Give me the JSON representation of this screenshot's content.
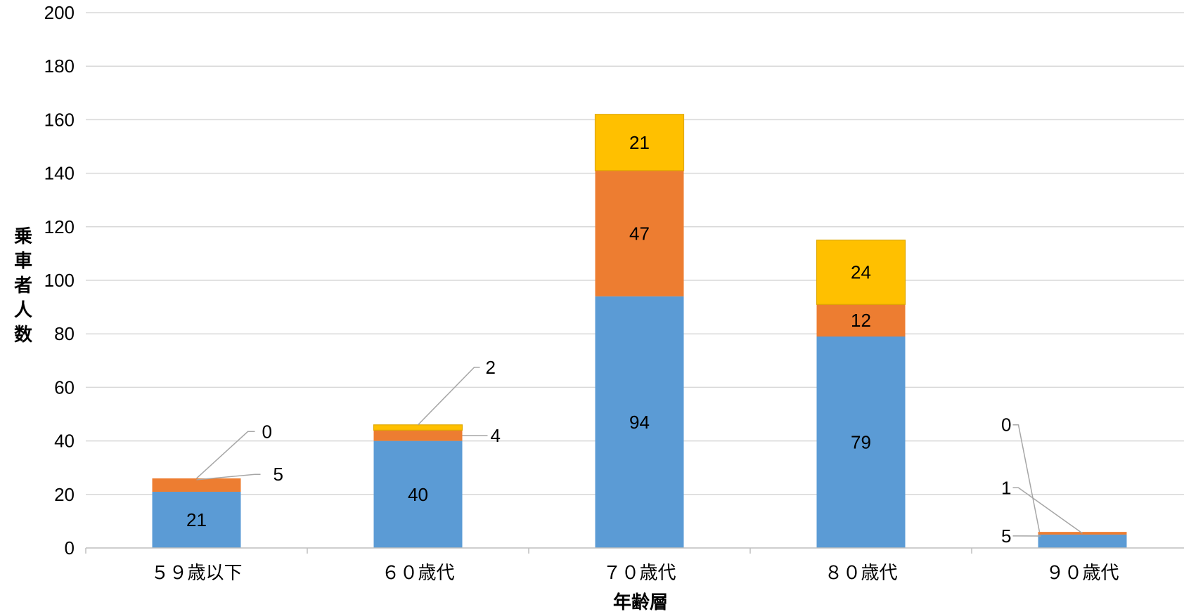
{
  "chart_data": {
    "type": "bar",
    "stacked": true,
    "categories": [
      "５９歳以下",
      "６０歳代",
      "７０歳代",
      "８０歳代",
      "９０歳代"
    ],
    "series": [
      {
        "color": "#5b9bd5",
        "values": [
          21,
          40,
          94,
          79,
          5
        ]
      },
      {
        "color": "#ed7d31",
        "values": [
          5,
          4,
          47,
          12,
          1
        ]
      },
      {
        "color": "#ffc000",
        "values": [
          0,
          2,
          21,
          24,
          0
        ]
      }
    ],
    "xlabel": "年齢層",
    "ylabel": "乗車者人数",
    "ylim": [
      0,
      200
    ],
    "yticks": [
      0,
      20,
      40,
      60,
      80,
      100,
      120,
      140,
      160,
      180,
      200
    ],
    "grid": true,
    "legend": "none"
  }
}
